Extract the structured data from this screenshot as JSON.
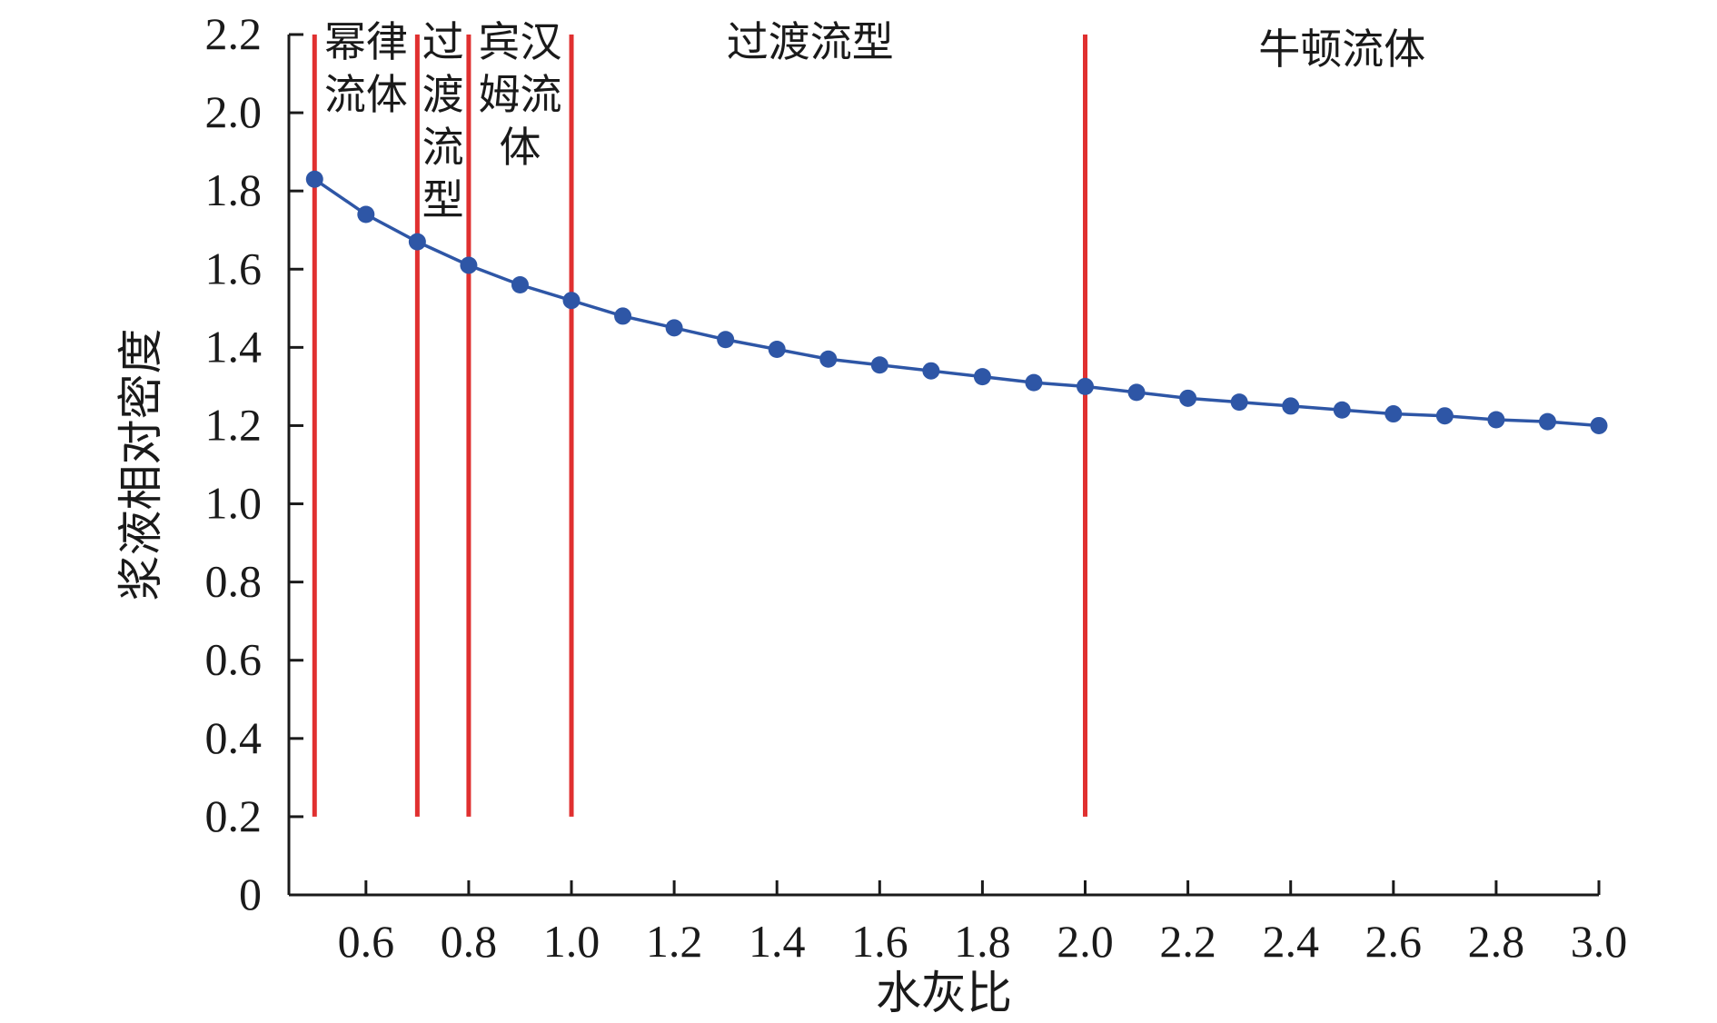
{
  "chart_data": {
    "type": "line",
    "title": "",
    "xlabel": "水灰比",
    "ylabel": "浆液相对密度",
    "xlim": [
      0.45,
      3.0
    ],
    "ylim": [
      0,
      2.2
    ],
    "x_ticks": [
      0.6,
      0.8,
      1.0,
      1.2,
      1.4,
      1.6,
      1.8,
      2.0,
      2.2,
      2.4,
      2.6,
      2.8,
      3.0
    ],
    "x_tick_labels": [
      "0.6",
      "0.8",
      "1.0",
      "1.2",
      "1.4",
      "1.6",
      "1.8",
      "2.0",
      "2.2",
      "2.4",
      "2.6",
      "2.8",
      "3.0"
    ],
    "y_ticks": [
      0,
      0.2,
      0.4,
      0.6,
      0.8,
      1.0,
      1.2,
      1.4,
      1.6,
      1.8,
      2.0,
      2.2
    ],
    "y_tick_labels": [
      "0",
      "0.2",
      "0.4",
      "0.6",
      "0.8",
      "1.0",
      "1.2",
      "1.4",
      "1.6",
      "1.8",
      "2.0",
      "2.2"
    ],
    "grid": false,
    "series_color": "#2e56a6",
    "boundary_color": "#e03030",
    "series": [
      {
        "x": [
          0.5,
          0.6,
          0.7,
          0.8,
          0.9,
          1.0,
          1.1,
          1.2,
          1.3,
          1.4,
          1.5,
          1.6,
          1.7,
          1.8,
          1.9,
          2.0,
          2.1,
          2.2,
          2.3,
          2.4,
          2.5,
          2.6,
          2.7,
          2.8,
          2.9,
          3.0
        ],
        "values": [
          1.83,
          1.74,
          1.67,
          1.61,
          1.56,
          1.52,
          1.48,
          1.45,
          1.42,
          1.395,
          1.37,
          1.355,
          1.34,
          1.325,
          1.31,
          1.3,
          1.285,
          1.27,
          1.26,
          1.25,
          1.24,
          1.23,
          1.225,
          1.215,
          1.21,
          1.2
        ]
      }
    ],
    "boundaries": [
      {
        "x": 0.5,
        "y_from": 0.2,
        "y_to": 2.2
      },
      {
        "x": 0.7,
        "y_from": 0.2,
        "y_to": 2.2
      },
      {
        "x": 0.8,
        "y_from": 0.2,
        "y_to": 2.2
      },
      {
        "x": 1.0,
        "y_from": 0.2,
        "y_to": 2.2
      },
      {
        "x": 2.0,
        "y_from": 0.2,
        "y_to": 2.2
      }
    ],
    "regions": [
      {
        "lines": [
          "幂律",
          "流体"
        ]
      },
      {
        "lines": [
          "过",
          "渡",
          "流",
          "型"
        ]
      },
      {
        "lines": [
          "宾汉",
          "姆流",
          "体"
        ]
      },
      {
        "lines": [
          "过渡流型"
        ]
      },
      {
        "lines": [
          "牛顿流体"
        ]
      }
    ]
  }
}
